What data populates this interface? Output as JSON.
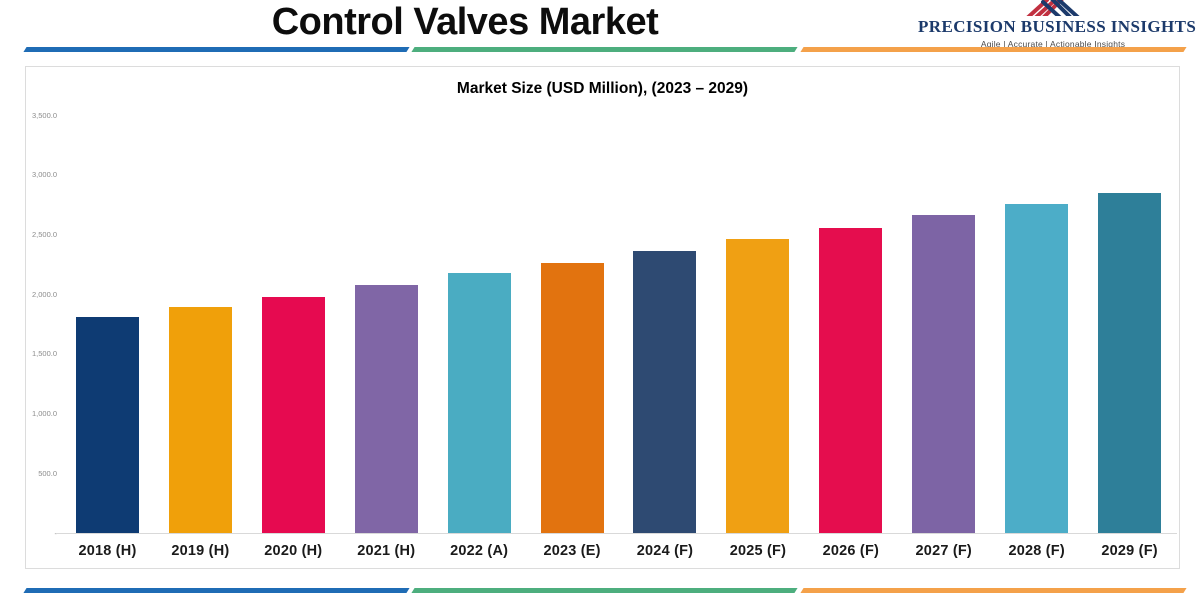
{
  "header": {
    "title": "Control Valves Market"
  },
  "logo": {
    "name": "PRECISION BUSINESS INSIGHTS",
    "tagline": "Agile | Accurate | Actionable Insights",
    "name_color": "#1c3a6b",
    "mark_red": "#c13040",
    "mark_navy": "#1c3a6b"
  },
  "divider_colors": {
    "blue": "#1f6cb5",
    "green": "#4dae7e",
    "orange": "#f4a14a"
  },
  "chart_data": {
    "type": "bar",
    "title": "Market Size (USD Million), (2023 – 2029)",
    "categories": [
      "2018 (H)",
      "2019 (H)",
      "2020 (H)",
      "2021 (H)",
      "2022 (A)",
      "2023 (E)",
      "2024 (F)",
      "2025 (F)",
      "2026 (F)",
      "2027 (F)",
      "2028 (F)",
      "2029 (F)"
    ],
    "values": [
      1810,
      1895,
      1980,
      2080,
      2175,
      2265,
      2365,
      2460,
      2555,
      2665,
      2755,
      2850
    ],
    "bar_colors": [
      "#0e3b73",
      "#f0a00a",
      "#e60a50",
      "#8066a6",
      "#4aacc2",
      "#e2730f",
      "#2e4a72",
      "#f0a013",
      "#e50d4e",
      "#7d64a5",
      "#4cadc8",
      "#2e7f99"
    ],
    "xlabel": "",
    "ylabel": "",
    "ylim": [
      0,
      3500
    ],
    "ytick_step": 500,
    "ytick_labels": [
      "-",
      "500.0",
      "1,000.0",
      "1,500.0",
      "2,000.0",
      "2,500.0",
      "3,000.0",
      "3,500.0"
    ],
    "grid": false,
    "legend": false,
    "axis_text_color": "#8c8c8c"
  }
}
